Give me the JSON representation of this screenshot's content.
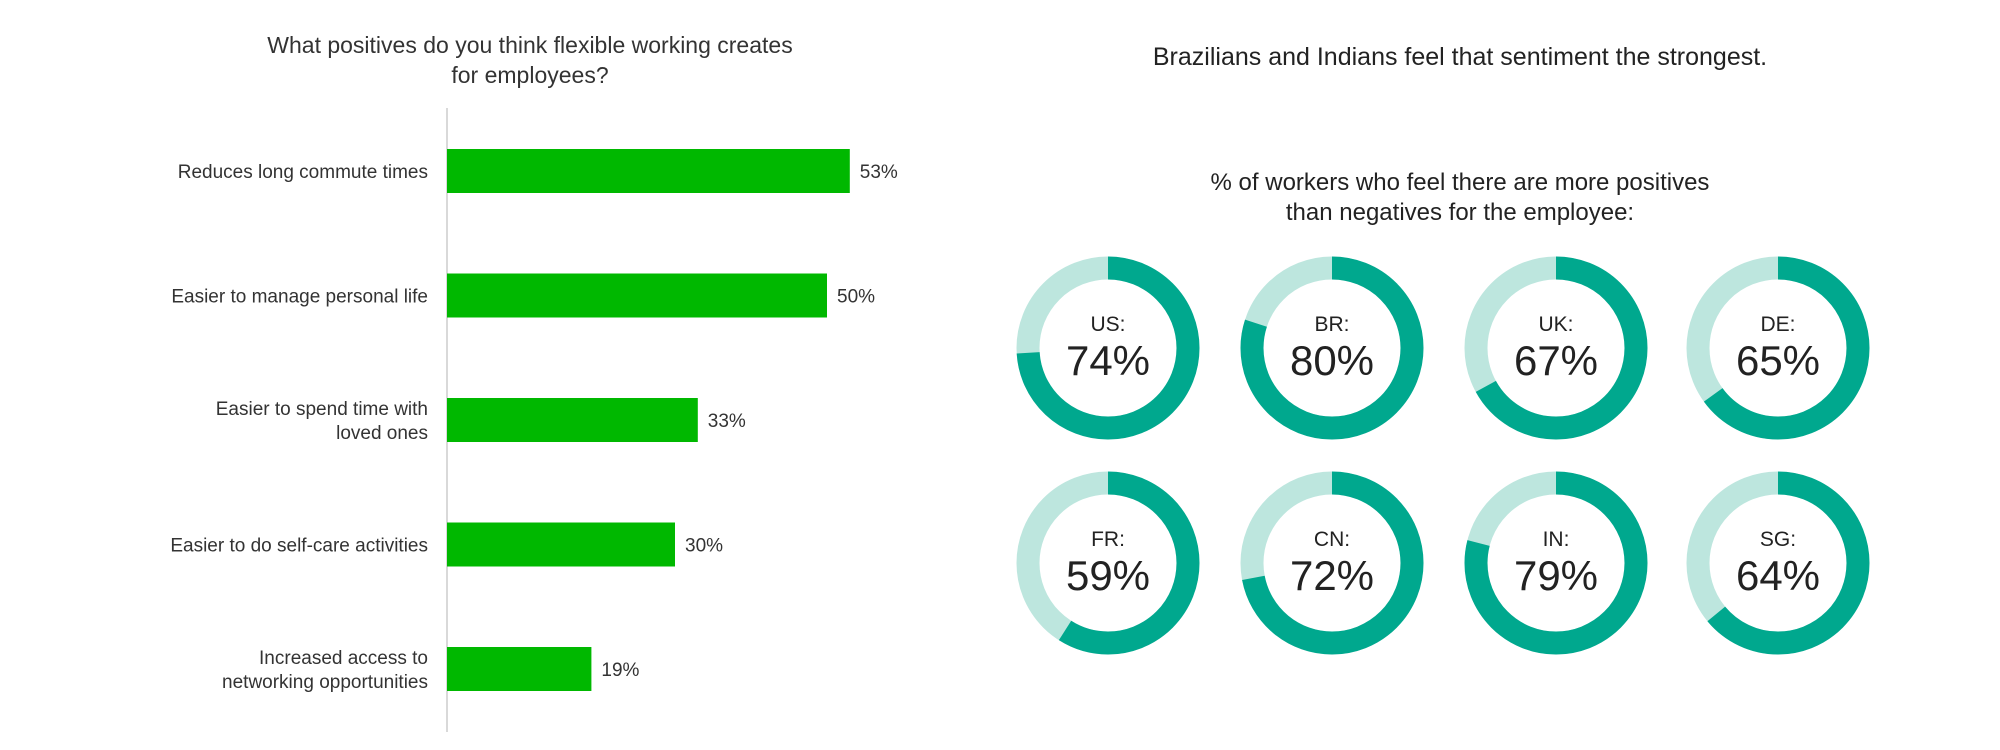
{
  "left_title": "What positives do you think flexible working creates\nfor employees?",
  "right_title": "Brazilians and Indians feel that sentiment the strongest.",
  "right_subtitle": "% of workers who feel there are more positives\nthan negatives for the employee:",
  "colors": {
    "bar": "#00b800",
    "axis": "#d9d9d9",
    "donut_fill": "#00a88e",
    "donut_track": "#bde6de"
  },
  "chart_data": [
    {
      "type": "bar",
      "orientation": "horizontal",
      "title": "What positives do you think flexible working creates\nfor employees?",
      "categories": [
        [
          "Reduces long commute times"
        ],
        [
          "Easier to manage personal life"
        ],
        [
          "Easier to spend time with",
          "loved ones"
        ],
        [
          "Easier to do self-care activities"
        ],
        [
          "Increased access to",
          "networking opportunities"
        ]
      ],
      "values": [
        53,
        50,
        33,
        30,
        19
      ],
      "value_labels": [
        "53%",
        "50%",
        "33%",
        "30%",
        "19%"
      ],
      "xlim": [
        0,
        100
      ],
      "grid": false
    },
    {
      "type": "pie",
      "variant": "donut",
      "title": "% of workers who feel there are more positives\nthan negatives for the employee:",
      "items": [
        {
          "code": "US:",
          "value": 74,
          "label": "74%"
        },
        {
          "code": "BR:",
          "value": 80,
          "label": "80%"
        },
        {
          "code": "UK:",
          "value": 67,
          "label": "67%"
        },
        {
          "code": "DE:",
          "value": 65,
          "label": "65%"
        },
        {
          "code": "FR:",
          "value": 59,
          "label": "59%"
        },
        {
          "code": "CN:",
          "value": 72,
          "label": "72%"
        },
        {
          "code": "IN:",
          "value": 79,
          "label": "79%"
        },
        {
          "code": "SG:",
          "value": 64,
          "label": "64%"
        }
      ]
    }
  ]
}
